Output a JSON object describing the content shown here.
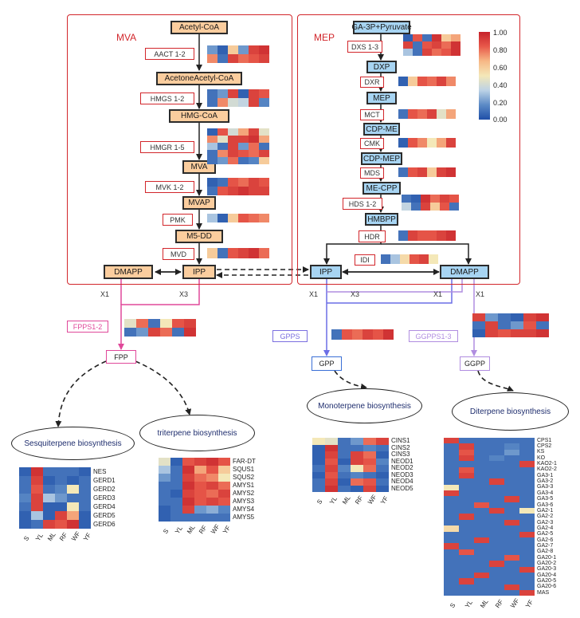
{
  "palette": {
    "red": "#d2262b",
    "gradient": [
      "#1f4fa8",
      "#5b8ac6",
      "#bcd2e6",
      "#f4e8b8",
      "#f7b886",
      "#e8594a",
      "#c6222a"
    ]
  },
  "mva": {
    "title": "MVA",
    "compounds": [
      "Acetyl-CoA",
      "AcetoneAcetyl-CoA",
      "HMG-CoA",
      "MVA",
      "MVAP",
      "M5-DD"
    ],
    "enzymes": [
      "AACT 1-2",
      "HMGS 1-2",
      "HMGR 1-5",
      "MVK 1-2",
      "PMK",
      "MVD"
    ],
    "dmapp": "DMAPP",
    "ipp": "IPP",
    "x1": "X1",
    "x3": "X3"
  },
  "mep": {
    "title": "MEP",
    "compounds": [
      "GA-3P+Pyruvate",
      "DXP",
      "MEP",
      "CDP-ME",
      "CDP-MEP",
      "ME-CPP",
      "HMBPP"
    ],
    "enzymes": [
      "DXS 1-3",
      "DXR",
      "MCT",
      "CMK",
      "MDS",
      "HDS 1-2",
      "HDR"
    ],
    "ipp": "IPP",
    "dmapp": "DMAPP",
    "idi": "IDI"
  },
  "colorbar": {
    "ticks": [
      "1.00",
      "0.80",
      "0.60",
      "0.40",
      "0.20",
      "0.00"
    ]
  },
  "lower": {
    "x1_left": "X1",
    "x3_mid": "X3",
    "x1_mid": "X1",
    "x1_right": "X1",
    "fpps": "FPPS1-2",
    "fpp": "FPP",
    "gpps": "GPPS",
    "gpp": "GPP",
    "ggpps": "GGPPS1-3",
    "ggpp": "GGPP"
  },
  "pathways": {
    "sesqui": "Sesquiterpene  biosynthesis",
    "triterpene": "triterpene  biosynthesis",
    "monoterpene": "Monoterpene biosynthesis",
    "diterpene": "Diterpene biosynthesis"
  },
  "tissues": [
    "S",
    "YL",
    "ML",
    "RF",
    "WF",
    "YF"
  ],
  "heatmaps": {
    "sesqui": {
      "genes": [
        "NES",
        "GERD1",
        "GERD2",
        "GERD3",
        "GERD4",
        "GERD5",
        "GERD6"
      ],
      "values": [
        [
          0.05,
          0.95,
          0.1,
          0.1,
          0.1,
          0.05
        ],
        [
          0.1,
          0.9,
          0.05,
          0.1,
          0.05,
          0.1
        ],
        [
          0.1,
          0.85,
          0.1,
          0.15,
          0.5,
          0.1
        ],
        [
          0.15,
          0.9,
          0.3,
          0.2,
          0.1,
          0.1
        ],
        [
          0.1,
          0.9,
          0.05,
          0.05,
          0.5,
          0.1
        ],
        [
          0.05,
          0.3,
          0.05,
          0.9,
          0.7,
          0.05
        ],
        [
          0.05,
          0.1,
          0.9,
          0.85,
          0.95,
          0.05
        ]
      ]
    },
    "triterpene": {
      "genes": [
        "FAR-DT",
        "SQUS1",
        "SQUS2",
        "AMYS1",
        "AMYS2",
        "AMYS3",
        "AMYS4",
        "AMYS5"
      ],
      "values": [
        [
          0.45,
          0.05,
          0.85,
          0.9,
          0.95,
          0.85
        ],
        [
          0.3,
          0.1,
          0.95,
          0.7,
          0.85,
          0.6
        ],
        [
          0.2,
          0.1,
          0.9,
          0.8,
          0.75,
          0.5
        ],
        [
          0.1,
          0.1,
          0.95,
          0.85,
          0.9,
          0.8
        ],
        [
          0.1,
          0.05,
          0.9,
          0.85,
          0.8,
          0.9
        ],
        [
          0.1,
          0.1,
          0.95,
          0.85,
          0.9,
          0.85
        ],
        [
          0.05,
          0.1,
          0.9,
          0.2,
          0.25,
          0.15
        ],
        [
          0.05,
          0.1,
          0.1,
          0.1,
          0.1,
          0.1
        ]
      ]
    },
    "monoterpene": {
      "genes": [
        "CINS1",
        "CINS2",
        "CINS3",
        "NEOD1",
        "NEOD2",
        "NEOD3",
        "NEOD4",
        "NEOD5"
      ],
      "values": [
        [
          0.5,
          0.45,
          0.1,
          0.2,
          0.8,
          0.9
        ],
        [
          0.05,
          0.95,
          0.1,
          0.1,
          0.15,
          0.1
        ],
        [
          0.05,
          0.9,
          0.1,
          0.9,
          0.8,
          0.05
        ],
        [
          0.05,
          0.85,
          0.05,
          0.9,
          0.85,
          0.15
        ],
        [
          0.1,
          0.9,
          0.15,
          0.5,
          0.8,
          0.1
        ],
        [
          0.05,
          0.85,
          0.1,
          0.15,
          0.1,
          0.05
        ],
        [
          0.1,
          0.9,
          0.05,
          0.8,
          0.85,
          0.1
        ],
        [
          0.1,
          0.95,
          0.1,
          0.05,
          0.9,
          0.05
        ]
      ]
    },
    "diterpene": {
      "genes": [
        "CPS1",
        "CPS2",
        "KS",
        "KO",
        "KAO2-1",
        "KAO2-2",
        "GA3-1",
        "GA3-2",
        "GA3-3",
        "GA3-4",
        "GA3-5",
        "GA3-6",
        "GA2-1",
        "GA2-2",
        "GA2-3",
        "GA2-4",
        "GA2-5",
        "GA2-6",
        "GA2-7",
        "GA2-8",
        "GA20-1",
        "GA20-2",
        "GA20-3",
        "GA20-4",
        "GA20-5",
        "GA20-6",
        "MAS"
      ],
      "values": [
        [
          0.9,
          0.1,
          0.1,
          0.1,
          0.1,
          0.1
        ],
        [
          0.1,
          0.9,
          0.1,
          0.1,
          0.15,
          0.1
        ],
        [
          0.1,
          0.85,
          0.1,
          0.1,
          0.2,
          0.1
        ],
        [
          0.1,
          0.9,
          0.1,
          0.15,
          0.1,
          0.1
        ],
        [
          0.1,
          0.1,
          0.1,
          0.1,
          0.1,
          0.9
        ],
        [
          0.1,
          0.85,
          0.1,
          0.1,
          0.1,
          0.1
        ],
        [
          0.1,
          0.9,
          0.1,
          0.1,
          0.1,
          0.1
        ],
        [
          0.1,
          0.1,
          0.1,
          0.9,
          0.1,
          0.1
        ],
        [
          0.5,
          0.1,
          0.1,
          0.1,
          0.1,
          0.1
        ],
        [
          0.9,
          0.1,
          0.1,
          0.1,
          0.1,
          0.1
        ],
        [
          0.1,
          0.1,
          0.1,
          0.1,
          0.9,
          0.1
        ],
        [
          0.1,
          0.1,
          0.85,
          0.1,
          0.1,
          0.1
        ],
        [
          0.1,
          0.1,
          0.1,
          0.9,
          0.1,
          0.5
        ],
        [
          0.1,
          0.9,
          0.1,
          0.1,
          0.1,
          0.1
        ],
        [
          0.1,
          0.1,
          0.1,
          0.1,
          0.9,
          0.1
        ],
        [
          0.55,
          0.1,
          0.1,
          0.1,
          0.1,
          0.1
        ],
        [
          0.1,
          0.1,
          0.1,
          0.1,
          0.1,
          0.9
        ],
        [
          0.1,
          0.1,
          0.9,
          0.1,
          0.1,
          0.1
        ],
        [
          0.9,
          0.1,
          0.1,
          0.1,
          0.1,
          0.1
        ],
        [
          0.1,
          0.85,
          0.1,
          0.1,
          0.1,
          0.1
        ],
        [
          0.1,
          0.1,
          0.1,
          0.1,
          0.85,
          0.1
        ],
        [
          0.1,
          0.1,
          0.1,
          0.9,
          0.1,
          0.1
        ],
        [
          0.1,
          0.1,
          0.1,
          0.1,
          0.1,
          0.9
        ],
        [
          0.1,
          0.1,
          0.9,
          0.1,
          0.1,
          0.1
        ],
        [
          0.1,
          0.9,
          0.1,
          0.1,
          0.1,
          0.1
        ],
        [
          0.1,
          0.1,
          0.1,
          0.1,
          0.9,
          0.1
        ],
        [
          0.1,
          0.1,
          0.1,
          0.1,
          0.1,
          0.9
        ]
      ]
    },
    "aact": {
      "values": [
        [
          0.2,
          0.05,
          0.6,
          0.2,
          0.9,
          0.95
        ],
        [
          0.75,
          0.1,
          0.9,
          0.8,
          0.85,
          0.9
        ]
      ]
    },
    "hmgs": {
      "values": [
        [
          0.1,
          0.2,
          0.9,
          0.05,
          0.9,
          0.85
        ],
        [
          0.1,
          0.75,
          0.4,
          0.35,
          0.9,
          0.15
        ]
      ]
    },
    "hmgr": {
      "values": [
        [
          0.05,
          0.85,
          0.4,
          0.7,
          0.9,
          0.45
        ],
        [
          0.75,
          0.45,
          0.9,
          0.9,
          0.95,
          0.7
        ],
        [
          0.3,
          0.1,
          0.9,
          0.2,
          0.8,
          0.1
        ],
        [
          0.1,
          0.75,
          0.9,
          0.85,
          0.8,
          0.9
        ],
        [
          0.1,
          0.2,
          0.8,
          0.1,
          0.15,
          0.6
        ]
      ]
    },
    "mvk": {
      "values": [
        [
          0.05,
          0.1,
          0.85,
          0.8,
          0.9,
          0.85
        ],
        [
          0.1,
          0.85,
          0.9,
          0.95,
          0.9,
          0.9
        ]
      ]
    },
    "pmk": {
      "values": [
        [
          0.3,
          0.05,
          0.6,
          0.85,
          0.8,
          0.75
        ]
      ]
    },
    "mvd": {
      "values": [
        [
          0.6,
          0.1,
          0.85,
          0.9,
          0.95,
          0.8
        ]
      ]
    },
    "dxs": {
      "values": [
        [
          0.05,
          0.85,
          0.1,
          0.95,
          0.6,
          0.7
        ],
        [
          0.9,
          0.1,
          0.85,
          0.9,
          0.8,
          0.95
        ],
        [
          0.3,
          0.1,
          0.9,
          0.8,
          0.85,
          0.95
        ]
      ]
    },
    "dxr": {
      "values": [
        [
          0.05,
          0.6,
          0.85,
          0.8,
          0.9,
          0.75
        ]
      ]
    },
    "mct": {
      "values": [
        [
          0.1,
          0.85,
          0.8,
          0.9,
          0.45,
          0.7
        ]
      ]
    },
    "cmk": {
      "values": [
        [
          0.05,
          0.85,
          0.75,
          0.5,
          0.7,
          0.9
        ]
      ]
    },
    "mds": {
      "values": [
        [
          0.1,
          0.85,
          0.9,
          0.6,
          0.9,
          0.95
        ]
      ]
    },
    "hds": {
      "values": [
        [
          0.1,
          0.05,
          0.95,
          0.8,
          0.9,
          0.85
        ],
        [
          0.35,
          0.1,
          0.9,
          0.6,
          0.85,
          0.1
        ]
      ]
    },
    "hdr": {
      "values": [
        [
          0.1,
          0.9,
          0.85,
          0.85,
          0.9,
          0.95
        ]
      ]
    },
    "idi": {
      "values": [
        [
          0.1,
          0.3,
          0.55,
          0.85,
          0.9,
          0.5
        ]
      ]
    },
    "fpps": {
      "values": [
        [
          0.45,
          0.8,
          0.1,
          0.5,
          0.85,
          0.9
        ],
        [
          0.1,
          0.2,
          0.9,
          0.8,
          0.1,
          0.95
        ]
      ]
    },
    "gpps": {
      "values": [
        [
          0.1,
          0.85,
          0.8,
          0.9,
          0.85,
          0.95
        ]
      ]
    },
    "ggpps": {
      "values": [
        [
          0.9,
          0.2,
          0.1,
          0.05,
          0.9,
          0.95
        ],
        [
          0.1,
          0.9,
          0.1,
          0.2,
          0.85,
          0.1
        ],
        [
          0.05,
          0.9,
          0.85,
          0.9,
          0.9,
          0.95
        ]
      ]
    }
  }
}
